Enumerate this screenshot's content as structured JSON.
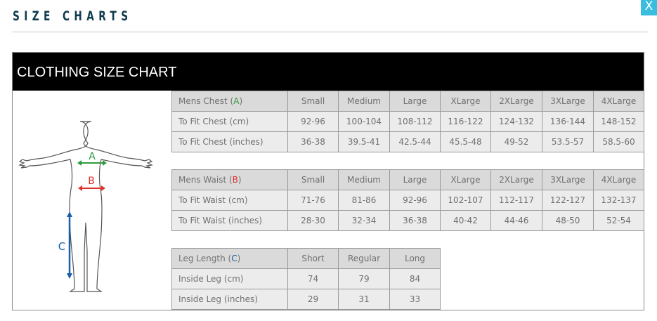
{
  "page": {
    "title": "SIZE CHARTS",
    "close_label": "X"
  },
  "chart": {
    "title": "CLOTHING SIZE CHART",
    "figure": {
      "labels": {
        "A": "A",
        "B": "B",
        "C": "C"
      }
    },
    "colors": {
      "A": "#2e9b3e",
      "B": "#e0322b",
      "C": "#1a5fa8"
    },
    "sections": [
      {
        "header": {
          "label": "Mens Chest",
          "letter": "A",
          "color": "#2e9b3e"
        },
        "columns": [
          "Small",
          "Medium",
          "Large",
          "XLarge",
          "2XLarge",
          "3XLarge",
          "4XLarge"
        ],
        "rows": [
          {
            "label": "To Fit Chest (cm)",
            "values": [
              "92-96",
              "100-104",
              "108-112",
              "116-122",
              "124-132",
              "136-144",
              "148-152"
            ]
          },
          {
            "label": "To Fit Chest (inches)",
            "values": [
              "36-38",
              "39.5-41",
              "42.5-44",
              "45.5-48",
              "49-52",
              "53.5-57",
              "58.5-60"
            ]
          }
        ]
      },
      {
        "header": {
          "label": "Mens Waist",
          "letter": "B",
          "color": "#e0322b"
        },
        "columns": [
          "Small",
          "Medium",
          "Large",
          "XLarge",
          "2XLarge",
          "3XLarge",
          "4XLarge"
        ],
        "rows": [
          {
            "label": "To Fit Waist (cm)",
            "values": [
              "71-76",
              "81-86",
              "92-96",
              "102-107",
              "112-117",
              "122-127",
              "132-137"
            ]
          },
          {
            "label": "To Fit Waist (inches)",
            "values": [
              "28-30",
              "32-34",
              "36-38",
              "40-42",
              "44-46",
              "48-50",
              "52-54"
            ]
          }
        ]
      },
      {
        "header": {
          "label": "Leg Length",
          "letter": "C",
          "color": "#1a5fa8"
        },
        "columns": [
          "Short",
          "Regular",
          "Long"
        ],
        "rows": [
          {
            "label": "Inside Leg (cm)",
            "values": [
              "74",
              "79",
              "84"
            ]
          },
          {
            "label": "Inside Leg (inches)",
            "values": [
              "29",
              "31",
              "33"
            ]
          }
        ]
      }
    ]
  }
}
